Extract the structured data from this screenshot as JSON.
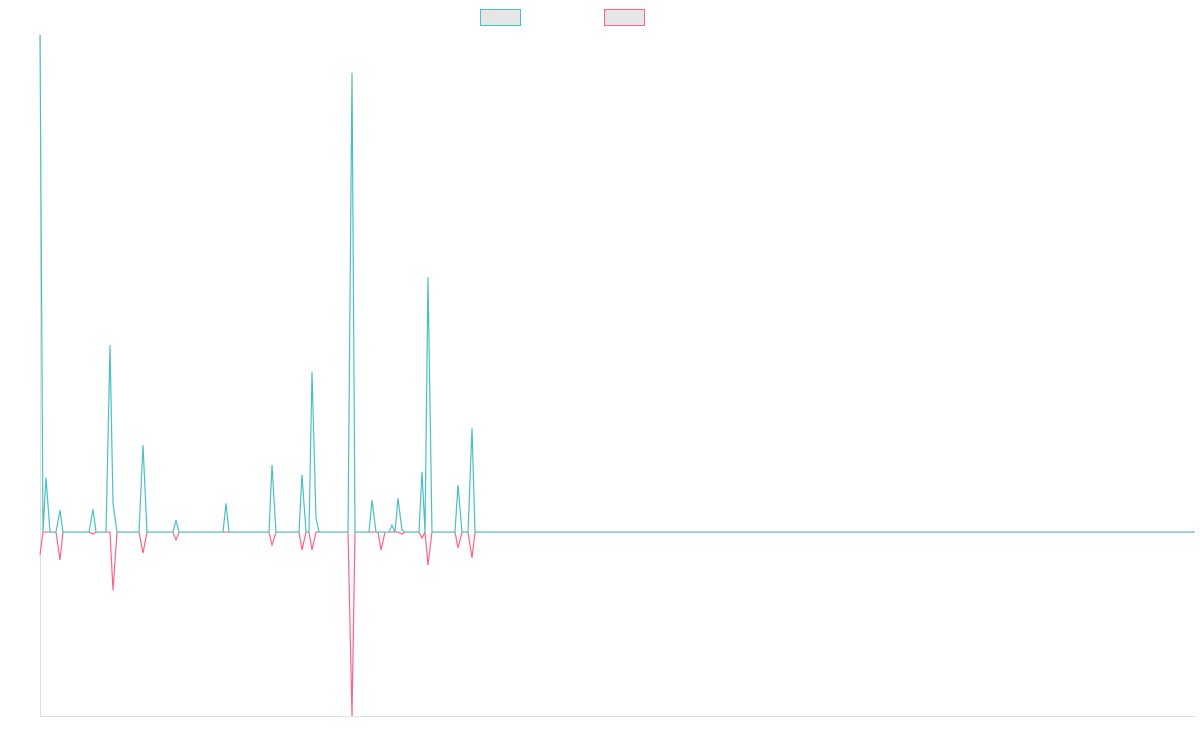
{
  "chart_data": {
    "type": "line",
    "x": [
      0,
      3,
      6,
      10,
      16,
      20,
      23,
      49,
      53,
      56,
      66,
      70,
      73,
      77,
      99,
      103,
      107,
      133,
      136,
      139,
      183,
      186,
      189,
      229,
      232,
      236,
      259,
      262,
      266,
      269,
      272,
      276,
      279,
      308,
      312,
      315,
      329,
      332,
      336,
      338,
      341,
      345,
      349,
      352,
      355,
      358,
      362,
      365,
      379,
      382,
      385,
      388,
      392,
      415,
      418,
      422,
      428,
      432,
      435,
      1155
    ],
    "series": [
      {
        "color": "#4bc0c0",
        "values": [
          100,
          0,
          11,
          0,
          0,
          4.4,
          0,
          0,
          4.6,
          0,
          0,
          37.6,
          5.8,
          0,
          0,
          17.5,
          0,
          0,
          2.4,
          0,
          0,
          5.8,
          0,
          0,
          13.5,
          0,
          0,
          11.5,
          0,
          0,
          32.2,
          2.8,
          0,
          0,
          92.4,
          0,
          0,
          6.4,
          0,
          0,
          0,
          0,
          0,
          1.4,
          0,
          6.8,
          0.4,
          0,
          0,
          12.1,
          0,
          51.3,
          0,
          0,
          9.5,
          0,
          0,
          20.9,
          0,
          0
        ]
      },
      {
        "color": "#ff6384",
        "values": [
          -4.6,
          0,
          0,
          0,
          0,
          -5.6,
          0,
          0,
          -0.4,
          0,
          0,
          0,
          -11.7,
          0,
          0,
          -4.2,
          0,
          0,
          -1.6,
          0,
          0,
          0,
          0,
          0,
          -2.6,
          0,
          0,
          -3.6,
          0,
          0,
          -3.6,
          0,
          0,
          0,
          -37,
          0,
          0,
          0,
          0,
          0,
          -3.6,
          0,
          0,
          0,
          0,
          0,
          -0.4,
          0,
          0,
          -1.2,
          0,
          -6.6,
          0,
          0,
          -3.2,
          0,
          0,
          -5.2,
          0,
          0
        ]
      }
    ],
    "xlim": [
      0,
      1155
    ],
    "ylim": [
      -37,
      100
    ]
  }
}
